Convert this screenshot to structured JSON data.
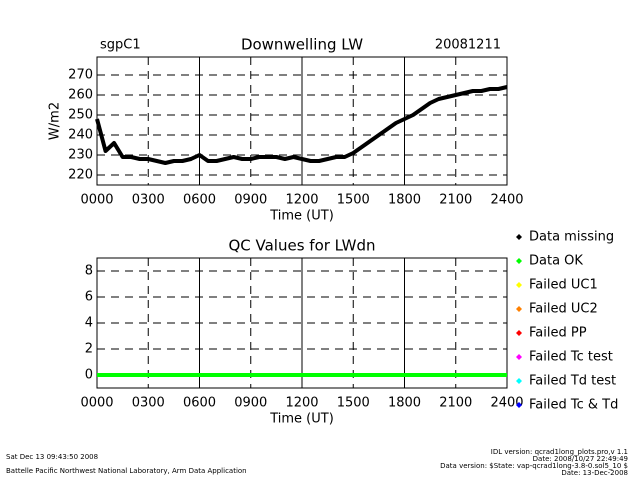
{
  "chart_data": [
    {
      "type": "line",
      "title": "Downwelling LW",
      "site": "sgpC1",
      "date": "20081211",
      "y_label": "W/m2",
      "x_label": "Time (UT)",
      "x": [
        0,
        0.5,
        1,
        1.5,
        2,
        2.5,
        3,
        3.5,
        4,
        4.5,
        5,
        5.5,
        6,
        6.5,
        7,
        7.5,
        8,
        8.5,
        9,
        9.5,
        10,
        10.5,
        11,
        11.5,
        12,
        12.5,
        13,
        13.5,
        14,
        14.5,
        15,
        15.5,
        16,
        16.5,
        17,
        17.5,
        18,
        18.5,
        19,
        19.5,
        20,
        20.5,
        21,
        21.5,
        22,
        22.5,
        23,
        23.5,
        24
      ],
      "values": [
        248,
        232,
        236,
        229,
        229,
        228,
        228,
        227,
        226,
        227,
        227,
        228,
        230,
        227,
        227,
        228,
        229,
        228,
        228,
        229,
        229,
        229,
        228,
        229,
        228,
        227,
        227,
        228,
        229,
        229,
        231,
        234,
        237,
        240,
        243,
        246,
        248,
        250,
        253,
        256,
        258,
        259,
        260,
        261,
        262,
        262,
        263,
        263,
        264
      ],
      "color": "#000000",
      "xlim": [
        0,
        24
      ],
      "xticks": [
        {
          "value": 0,
          "label": "0000"
        },
        {
          "value": 3,
          "label": "0300"
        },
        {
          "value": 6,
          "label": "0600"
        },
        {
          "value": 9,
          "label": "0900"
        },
        {
          "value": 12,
          "label": "1200"
        },
        {
          "value": 15,
          "label": "1500"
        },
        {
          "value": 18,
          "label": "1800"
        },
        {
          "value": 21,
          "label": "2100"
        },
        {
          "value": 24,
          "label": "2400"
        }
      ],
      "ylim": [
        215,
        279
      ],
      "yticks": [
        220,
        230,
        240,
        250,
        260,
        270
      ],
      "grid": true
    },
    {
      "type": "line",
      "title": "QC Values for LWdn",
      "x_label": "Time (UT)",
      "x": [
        0,
        24
      ],
      "series": [
        {
          "name": "Data missing",
          "color": "#000000",
          "values": [
            null,
            null
          ]
        },
        {
          "name": "Data OK",
          "color": "#00ff00",
          "values": [
            0,
            0
          ]
        },
        {
          "name": "Failed UC1",
          "color": "#ffff00",
          "values": [
            null,
            null
          ]
        },
        {
          "name": "Failed UC2",
          "color": "#ff8000",
          "values": [
            null,
            null
          ]
        },
        {
          "name": "Failed PP",
          "color": "#ff0000",
          "values": [
            null,
            null
          ]
        },
        {
          "name": "Failed Tc test",
          "color": "#ff00ff",
          "values": [
            null,
            null
          ]
        },
        {
          "name": "Failed Td test",
          "color": "#00ffff",
          "values": [
            null,
            null
          ]
        },
        {
          "name": "Failed Tc & Td",
          "color": "#0000ff",
          "values": [
            null,
            null
          ]
        }
      ],
      "xlim": [
        0,
        24
      ],
      "xticks": [
        {
          "value": 0,
          "label": "0000"
        },
        {
          "value": 3,
          "label": "0300"
        },
        {
          "value": 6,
          "label": "0600"
        },
        {
          "value": 9,
          "label": "0900"
        },
        {
          "value": 12,
          "label": "1200"
        },
        {
          "value": 15,
          "label": "1500"
        },
        {
          "value": 18,
          "label": "1800"
        },
        {
          "value": 21,
          "label": "2100"
        },
        {
          "value": 24,
          "label": "2400"
        }
      ],
      "ylim": [
        -1,
        9
      ],
      "yticks": [
        0,
        2,
        4,
        6,
        8
      ],
      "grid": true,
      "legend": "right"
    }
  ],
  "footer": {
    "timestamp": "Sat Dec 13 09:43:50 2008",
    "organization": "Battelle Pacific Northwest National Laboratory, Arm Data Application",
    "idl_version": "IDL version: qcrad1long_plots.pro,v 1.1",
    "idl_date": "Date: 2008/10/27 22:49:49",
    "data_version": "Data version: $State: vap-qcrad1long-3.8-0.sol5_10 $",
    "data_date": "Date: 13-Dec-2008"
  }
}
